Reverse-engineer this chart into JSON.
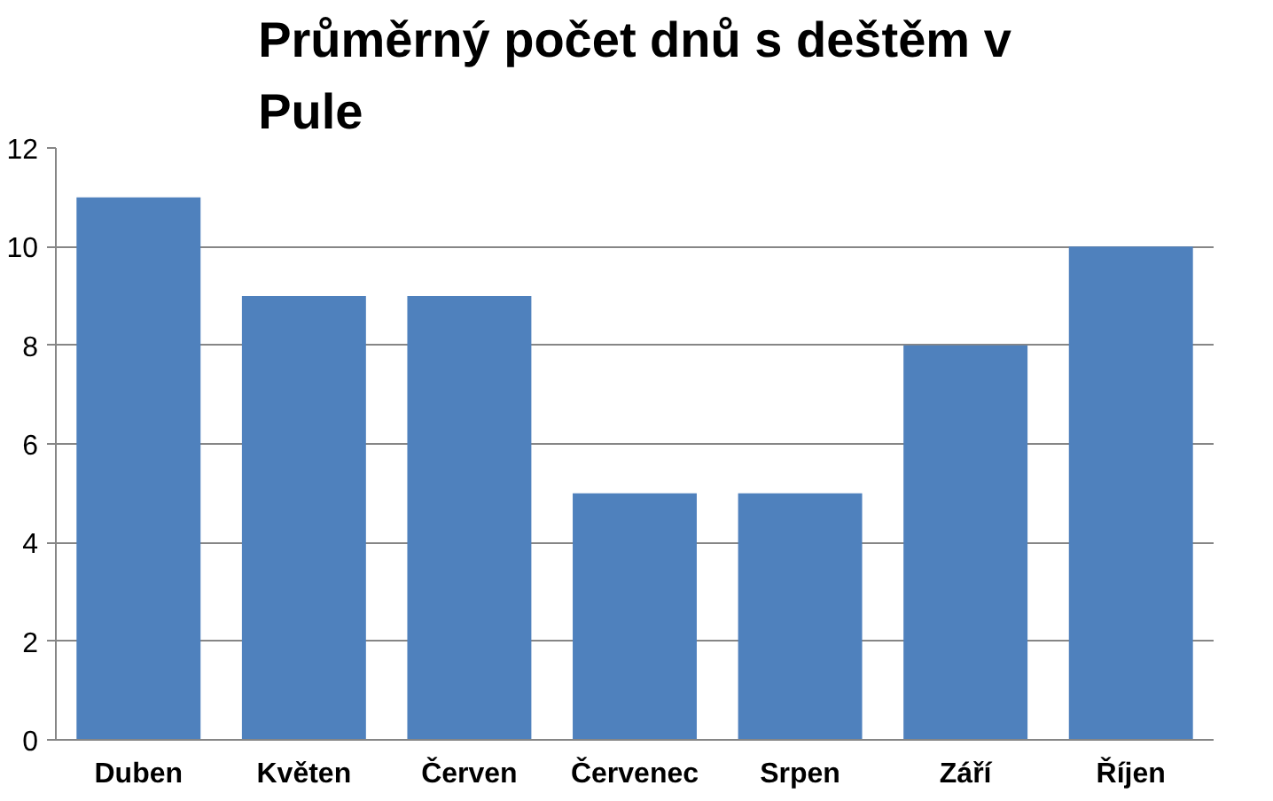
{
  "chart_data": {
    "type": "bar",
    "title": "Průměrný počet dnů s deštěm v Pule",
    "categories": [
      "Duben",
      "Květen",
      "Červen",
      "Červenec",
      "Srpen",
      "Září",
      "Říjen"
    ],
    "values": [
      11,
      9,
      9,
      5,
      5,
      8,
      10
    ],
    "color": "#4f81bd",
    "ylim": [
      0,
      12
    ],
    "yticks": [
      0,
      2,
      4,
      6,
      8,
      10,
      12
    ],
    "grid": "y"
  }
}
